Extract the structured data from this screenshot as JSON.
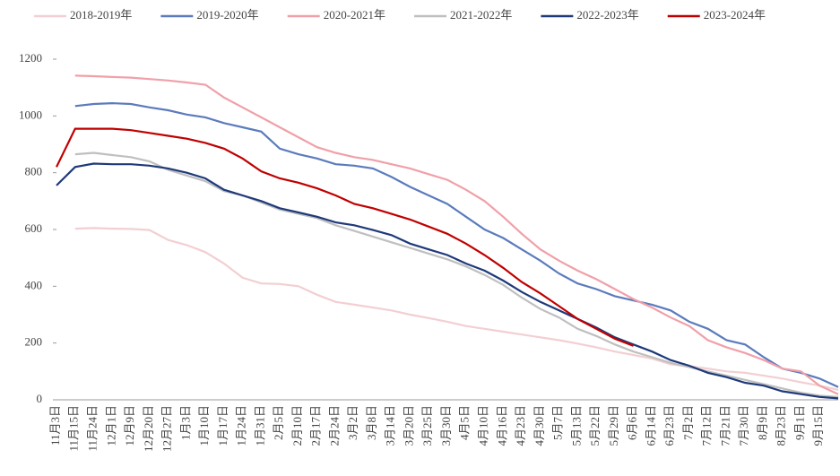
{
  "chart_data": {
    "type": "line",
    "categories": [
      "11月3日",
      "11月15日",
      "11月24日",
      "12月1日",
      "12月9日",
      "12月20日",
      "12月27日",
      "1月3日",
      "1月10日",
      "1月17日",
      "1月24日",
      "1月31日",
      "2月5日",
      "2月10日",
      "2月17日",
      "2月24日",
      "3月2日",
      "3月8日",
      "3月14日",
      "3月20日",
      "3月25日",
      "3月30日",
      "4月5日",
      "4月10日",
      "4月16日",
      "4月23日",
      "4月30日",
      "5月7日",
      "5月13日",
      "5月22日",
      "5月29日",
      "6月6日",
      "6月14日",
      "6月23日",
      "7月2日",
      "7月12日",
      "7月21日",
      "7月30日",
      "8月9日",
      "8月23日",
      "9月1日",
      "9月15日",
      null
    ],
    "series": [
      {
        "name": "2018-2019年",
        "color": "#f2cfd2",
        "values": [
          null,
          603,
          605,
          603,
          602,
          598,
          563,
          545,
          520,
          480,
          430,
          410,
          408,
          400,
          370,
          345,
          335,
          325,
          315,
          300,
          288,
          275,
          260,
          250,
          240,
          230,
          220,
          210,
          198,
          185,
          170,
          158,
          145,
          125,
          118,
          110,
          100,
          95,
          85,
          75,
          62,
          50,
          35
        ]
      },
      {
        "name": "2019-2020年",
        "color": "#5b7bbd",
        "values": [
          null,
          1035,
          1042,
          1045,
          1042,
          1030,
          1020,
          1005,
          995,
          975,
          960,
          945,
          885,
          865,
          850,
          830,
          825,
          815,
          785,
          750,
          720,
          690,
          645,
          600,
          570,
          530,
          490,
          445,
          410,
          390,
          365,
          350,
          335,
          315,
          275,
          250,
          210,
          195,
          150,
          110,
          95,
          75,
          45
        ]
      },
      {
        "name": "2020-2021年",
        "color": "#f0a0a8",
        "values": [
          null,
          1142,
          1140,
          1137,
          1135,
          1130,
          1125,
          1118,
          1110,
          1065,
          1030,
          995,
          960,
          925,
          890,
          870,
          855,
          845,
          830,
          815,
          795,
          775,
          740,
          700,
          645,
          585,
          530,
          490,
          455,
          425,
          390,
          355,
          325,
          290,
          260,
          210,
          185,
          165,
          140,
          110,
          100,
          50,
          20
        ]
      },
      {
        "name": "2021-2022年",
        "color": "#bfbfbf",
        "values": [
          null,
          865,
          870,
          862,
          855,
          840,
          810,
          790,
          770,
          735,
          720,
          695,
          670,
          655,
          640,
          615,
          595,
          575,
          555,
          535,
          515,
          495,
          470,
          440,
          405,
          360,
          320,
          290,
          250,
          225,
          195,
          170,
          150,
          130,
          115,
          100,
          85,
          70,
          55,
          40,
          25,
          15,
          10
        ]
      },
      {
        "name": "2022-2023年",
        "color": "#1f3a7a",
        "values": [
          755,
          820,
          832,
          830,
          830,
          825,
          815,
          800,
          780,
          740,
          720,
          700,
          675,
          660,
          645,
          625,
          615,
          598,
          580,
          550,
          530,
          510,
          480,
          455,
          420,
          380,
          345,
          315,
          285,
          255,
          220,
          195,
          170,
          140,
          120,
          95,
          80,
          60,
          50,
          30,
          20,
          10,
          5
        ]
      },
      {
        "name": "2023-2024年",
        "color": "#c00000",
        "values": [
          820,
          955,
          955,
          955,
          950,
          940,
          930,
          920,
          905,
          885,
          850,
          805,
          780,
          765,
          745,
          720,
          690,
          675,
          655,
          635,
          610,
          585,
          550,
          510,
          465,
          415,
          375,
          330,
          285,
          250,
          215,
          190,
          null,
          null,
          null,
          null,
          null,
          null,
          null,
          null,
          null,
          null,
          null
        ]
      }
    ],
    "ylim": [
      0,
      1200
    ],
    "yticks": [
      0,
      200,
      400,
      600,
      800,
      1000,
      1200
    ],
    "legend": "top"
  }
}
